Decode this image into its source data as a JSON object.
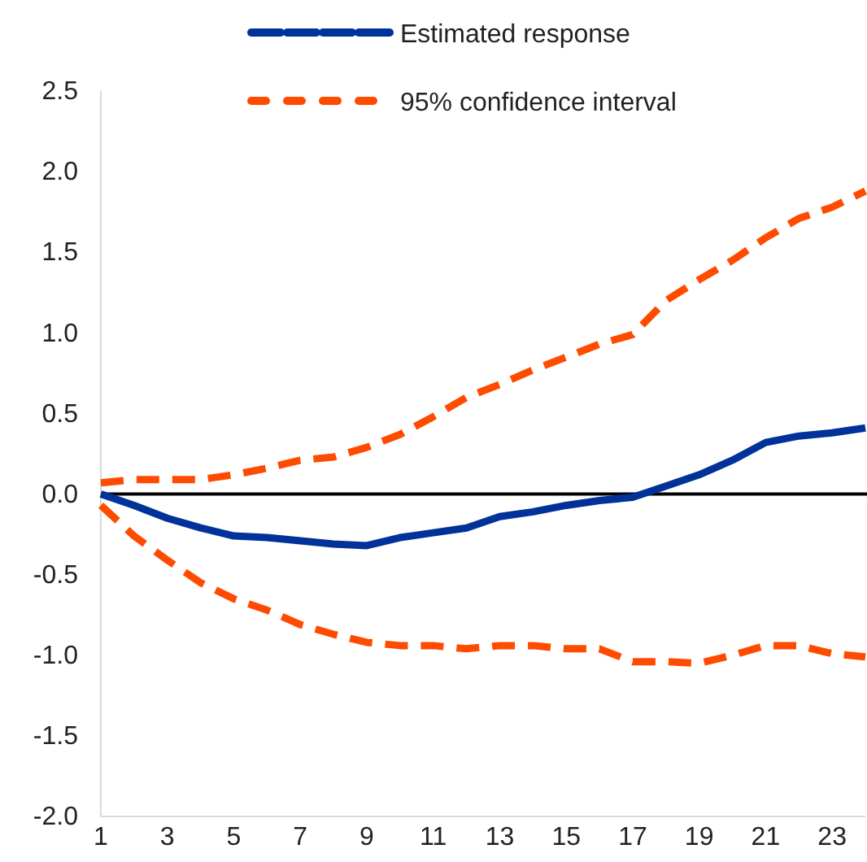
{
  "chart_data": {
    "type": "line",
    "x": [
      1,
      2,
      3,
      4,
      5,
      6,
      7,
      8,
      9,
      10,
      11,
      12,
      13,
      14,
      15,
      16,
      17,
      18,
      19,
      20,
      21,
      22,
      23,
      24
    ],
    "xlim": [
      1,
      24
    ],
    "xticks": [
      1,
      3,
      5,
      7,
      9,
      11,
      13,
      15,
      17,
      19,
      21,
      23
    ],
    "ylim": [
      -2,
      2.5
    ],
    "yticks": [
      {
        "value": -2,
        "label": "-2.0"
      },
      {
        "value": -1.5,
        "label": "-1.5"
      },
      {
        "value": -1,
        "label": "-1.0"
      },
      {
        "value": -0.5,
        "label": "-0.5"
      },
      {
        "value": 0,
        "label": "0.0"
      },
      {
        "value": 0.5,
        "label": "0.5"
      },
      {
        "value": 1,
        "label": "1.0"
      },
      {
        "value": 1.5,
        "label": "1.5"
      },
      {
        "value": 2,
        "label": "2.0"
      },
      {
        "value": 2.5,
        "label": "2.5"
      }
    ],
    "grid": false,
    "legend": "top",
    "marker": "none",
    "ref_lines": [
      {
        "axis": "y",
        "value": 0,
        "color": "#000000",
        "line_style": "solid"
      }
    ],
    "series": [
      {
        "name": "Estimated response",
        "color": "#003299",
        "line_style": "solid",
        "values": [
          0,
          -0.07,
          -0.15,
          -0.21,
          -0.26,
          -0.27,
          -0.29,
          -0.31,
          -0.32,
          -0.27,
          -0.24,
          -0.21,
          -0.14,
          -0.11,
          -0.07,
          -0.04,
          -0.02,
          0.05,
          0.12,
          0.21,
          0.32,
          0.36,
          0.38,
          0.41
        ]
      },
      {
        "name": "95% confidence interval",
        "color": "#ff4b00",
        "line_style": "dashed",
        "values": [
          0.07,
          0.09,
          0.09,
          0.09,
          0.12,
          0.16,
          0.21,
          0.23,
          0.29,
          0.37,
          0.48,
          0.6,
          0.68,
          0.77,
          0.85,
          0.93,
          0.99,
          1.2,
          1.33,
          1.45,
          1.59,
          1.71,
          1.78,
          1.88
        ]
      },
      {
        "color": "#ff4b00",
        "line_style": "dashed",
        "values": [
          -0.07,
          -0.26,
          -0.41,
          -0.55,
          -0.65,
          -0.72,
          -0.81,
          -0.87,
          -0.92,
          -0.94,
          -0.94,
          -0.96,
          -0.94,
          -0.94,
          -0.96,
          -0.96,
          -1.04,
          -1.04,
          -1.05,
          -1.0,
          -0.94,
          -0.94,
          -0.99,
          -1.01
        ]
      }
    ]
  }
}
